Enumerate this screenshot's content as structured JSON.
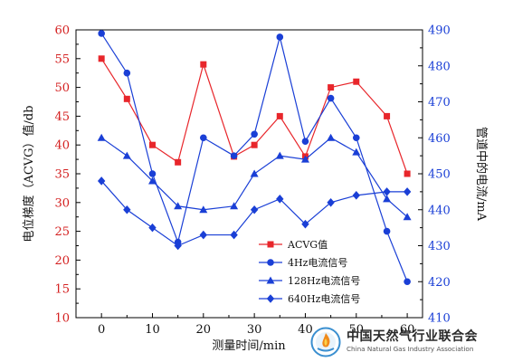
{
  "chart_data": {
    "type": "line",
    "xlabel": "测量时间/min",
    "ylabel": "电位梯度（ACVG）值/db",
    "y2label": "管道中的电流/mA",
    "xlim": [
      -5,
      63
    ],
    "ylim": [
      10,
      60
    ],
    "y2lim": [
      410,
      490
    ],
    "xticks": [
      0,
      10,
      20,
      30,
      40,
      50,
      60
    ],
    "yticks": [
      10,
      15,
      20,
      25,
      30,
      35,
      40,
      45,
      50,
      55,
      60
    ],
    "y2ticks": [
      410,
      420,
      430,
      440,
      450,
      460,
      470,
      480,
      490
    ],
    "grid": false,
    "legend_position": "lower-middle",
    "series": [
      {
        "name": "ACVG值",
        "axis": "left",
        "marker": "square",
        "color": "#e8262b",
        "x": [
          0,
          5,
          10,
          15,
          20,
          26,
          30,
          35,
          40,
          45,
          50,
          56,
          60
        ],
        "y": [
          55,
          48,
          40,
          37,
          54,
          38,
          40,
          45,
          38,
          50,
          51,
          45,
          35
        ]
      },
      {
        "name": "4Hz电流信号",
        "axis": "right",
        "marker": "circle",
        "color": "#1a3fd6",
        "x": [
          0,
          5,
          10,
          15,
          20,
          26,
          30,
          35,
          40,
          45,
          50,
          56,
          60
        ],
        "y": [
          489,
          478,
          450,
          431,
          460,
          455,
          461,
          488,
          459,
          471,
          460,
          434,
          420
        ]
      },
      {
        "name": "128Hz电流信号",
        "axis": "right",
        "marker": "triangle",
        "color": "#1a3fd6",
        "x": [
          0,
          5,
          10,
          15,
          20,
          26,
          30,
          35,
          40,
          45,
          50,
          56,
          60
        ],
        "y": [
          460,
          455,
          448,
          441,
          440,
          441,
          450,
          455,
          454,
          460,
          456,
          443,
          438
        ]
      },
      {
        "name": "640Hz电流信号",
        "axis": "right",
        "marker": "diamond",
        "color": "#1a3fd6",
        "x": [
          0,
          5,
          10,
          15,
          20,
          26,
          30,
          35,
          40,
          45,
          50,
          56,
          60
        ],
        "y": [
          448,
          440,
          435,
          430,
          433,
          433,
          440,
          443,
          436,
          442,
          444,
          445,
          445
        ]
      }
    ]
  },
  "watermark": {
    "name_cn": "中国天然气行业联合会",
    "name_en": "China Natural Gas Industry Association"
  }
}
